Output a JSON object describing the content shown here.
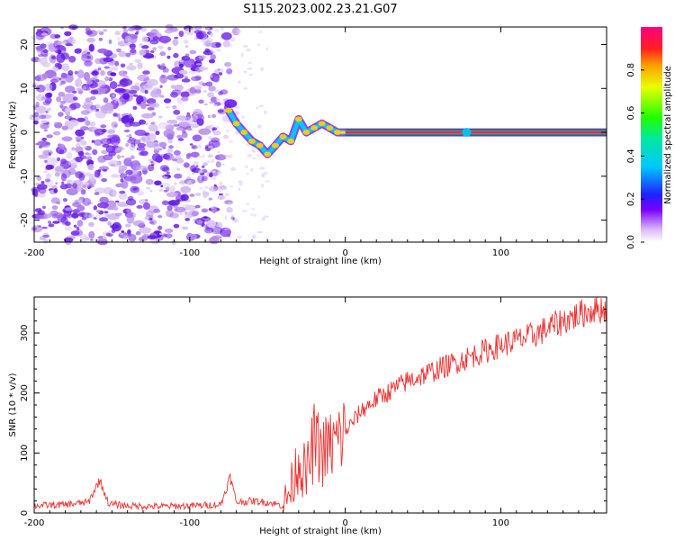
{
  "title": "S115.2023.002.23.21.G07",
  "chart_data": [
    {
      "type": "heatmap",
      "title": "S115.2023.002.23.21.G07",
      "xlabel": "Height of straight line (km)",
      "ylabel": "Frequency (Hz)",
      "xlim": [
        -200,
        168
      ],
      "ylim": [
        -25,
        24
      ],
      "x_ticks": [
        -200,
        -100,
        0,
        100
      ],
      "y_ticks": [
        -20,
        -10,
        0,
        10,
        20
      ],
      "colorbar": {
        "label": "Normalized spectral amplitude",
        "range": [
          0,
          1
        ],
        "ticks": [
          "0.0",
          "0.2",
          "0.4",
          "0.6",
          "0.8"
        ]
      },
      "ridge": [
        {
          "x": -75,
          "y": 5
        },
        {
          "x": -70,
          "y": 2
        },
        {
          "x": -65,
          "y": 0
        },
        {
          "x": -60,
          "y": -2
        },
        {
          "x": -55,
          "y": -3
        },
        {
          "x": -50,
          "y": -5
        },
        {
          "x": -45,
          "y": -3
        },
        {
          "x": -40,
          "y": -1
        },
        {
          "x": -35,
          "y": -2
        },
        {
          "x": -30,
          "y": 3
        },
        {
          "x": -25,
          "y": 0
        },
        {
          "x": -20,
          "y": 1
        },
        {
          "x": -15,
          "y": 2
        },
        {
          "x": -10,
          "y": 1
        },
        {
          "x": -5,
          "y": 0
        },
        {
          "x": 0,
          "y": 0
        },
        {
          "x": 80,
          "y": 0
        },
        {
          "x": 168,
          "y": 0
        }
      ]
    },
    {
      "type": "line",
      "xlabel": "Height of straight line (km)",
      "ylabel": "SNR (10 * v/v)",
      "xlim": [
        -200,
        168
      ],
      "ylim": [
        0,
        360
      ],
      "x_ticks": [
        -200,
        -100,
        0,
        100
      ],
      "y_ticks": [
        0,
        100,
        200,
        300
      ],
      "series": [
        {
          "name": "SNR",
          "color": "#ee3333",
          "x": [
            -200,
            -180,
            -165,
            -158,
            -152,
            -140,
            -120,
            -100,
            -80,
            -74,
            -70,
            -60,
            -50,
            -40,
            -35,
            -30,
            -25,
            -20,
            -15,
            -10,
            -5,
            0,
            10,
            20,
            40,
            60,
            80,
            100,
            120,
            140,
            160,
            168
          ],
          "y": [
            12,
            14,
            18,
            55,
            15,
            12,
            11,
            12,
            14,
            60,
            18,
            20,
            18,
            12,
            40,
            90,
            60,
            120,
            100,
            110,
            120,
            135,
            170,
            190,
            220,
            240,
            260,
            280,
            295,
            320,
            340,
            340
          ]
        }
      ]
    }
  ],
  "colors": {
    "snr_line": "#ee3333",
    "ridge_core": "#ff2244",
    "ridge_line": "#00aa00",
    "scatter_light": "#c8a8f0",
    "scatter_dark": "#6a1aee"
  }
}
